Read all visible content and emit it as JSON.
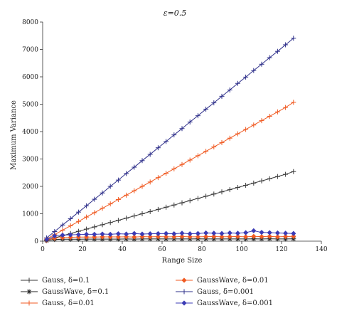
{
  "chart_data": {
    "type": "line",
    "title": "ε=0.5",
    "xlabel": "Range Size",
    "ylabel": "Maximum Variance",
    "xlim": [
      0,
      140
    ],
    "ylim": [
      0,
      8000
    ],
    "xticks": [
      0,
      20,
      40,
      60,
      80,
      100,
      120,
      140
    ],
    "yticks": [
      0,
      1000,
      2000,
      3000,
      4000,
      5000,
      6000,
      7000,
      8000
    ],
    "grid": false,
    "legend_position": "below",
    "x": [
      2,
      6,
      10,
      14,
      18,
      22,
      26,
      30,
      34,
      38,
      42,
      46,
      50,
      54,
      58,
      62,
      66,
      70,
      74,
      78,
      82,
      86,
      90,
      94,
      98,
      102,
      106,
      110,
      114,
      118,
      122,
      126
    ],
    "series": [
      {
        "name": "Gauss, δ=0.1",
        "color": "#3a3a3a",
        "marker": "plus",
        "values": [
          40,
          120,
          200,
          280,
          360,
          440,
          520,
          600,
          680,
          760,
          840,
          920,
          1000,
          1080,
          1160,
          1240,
          1320,
          1400,
          1480,
          1560,
          1640,
          1720,
          1800,
          1880,
          1960,
          2040,
          2120,
          2200,
          2280,
          2360,
          2440,
          2540
        ]
      },
      {
        "name": "GaussWave, δ=0.1",
        "color": "#222222",
        "marker": "star",
        "values": [
          20,
          60,
          70,
          70,
          70,
          75,
          75,
          75,
          75,
          75,
          80,
          75,
          80,
          80,
          80,
          80,
          80,
          80,
          80,
          85,
          80,
          80,
          80,
          80,
          80,
          80,
          85,
          80,
          85,
          80,
          80,
          85
        ]
      },
      {
        "name": "Gauss, δ=0.01",
        "color": "#f05a22",
        "marker": "plus",
        "values": [
          80,
          240,
          400,
          560,
          720,
          880,
          1040,
          1200,
          1360,
          1520,
          1680,
          1840,
          2000,
          2160,
          2320,
          2480,
          2640,
          2800,
          2960,
          3120,
          3280,
          3440,
          3600,
          3760,
          3920,
          4080,
          4240,
          4400,
          4560,
          4720,
          4880,
          5070
        ]
      },
      {
        "name": "GaussWave, δ=0.01",
        "color": "#f05a22",
        "marker": "diamond",
        "values": [
          30,
          110,
          130,
          140,
          150,
          150,
          150,
          155,
          155,
          155,
          160,
          150,
          165,
          160,
          165,
          160,
          160,
          170,
          160,
          160,
          165,
          170,
          160,
          165,
          170,
          160,
          175,
          165,
          175,
          160,
          170,
          175
        ]
      },
      {
        "name": "Gauss, δ=0.001",
        "color": "#2e2f8a",
        "marker": "plus",
        "values": [
          120,
          350,
          590,
          820,
          1060,
          1290,
          1530,
          1760,
          2000,
          2230,
          2470,
          2700,
          2940,
          3170,
          3410,
          3640,
          3880,
          4110,
          4350,
          4580,
          4820,
          5050,
          5290,
          5520,
          5760,
          5990,
          6230,
          6460,
          6700,
          6930,
          7170,
          7410
        ]
      },
      {
        "name": "GaussWave, δ=0.001",
        "color": "#3b3bb5",
        "marker": "diamond",
        "values": [
          50,
          190,
          220,
          230,
          240,
          250,
          250,
          260,
          250,
          270,
          260,
          280,
          260,
          270,
          275,
          280,
          270,
          290,
          270,
          280,
          300,
          290,
          280,
          300,
          290,
          310,
          380,
          320,
          310,
          300,
          290,
          280
        ]
      }
    ]
  }
}
